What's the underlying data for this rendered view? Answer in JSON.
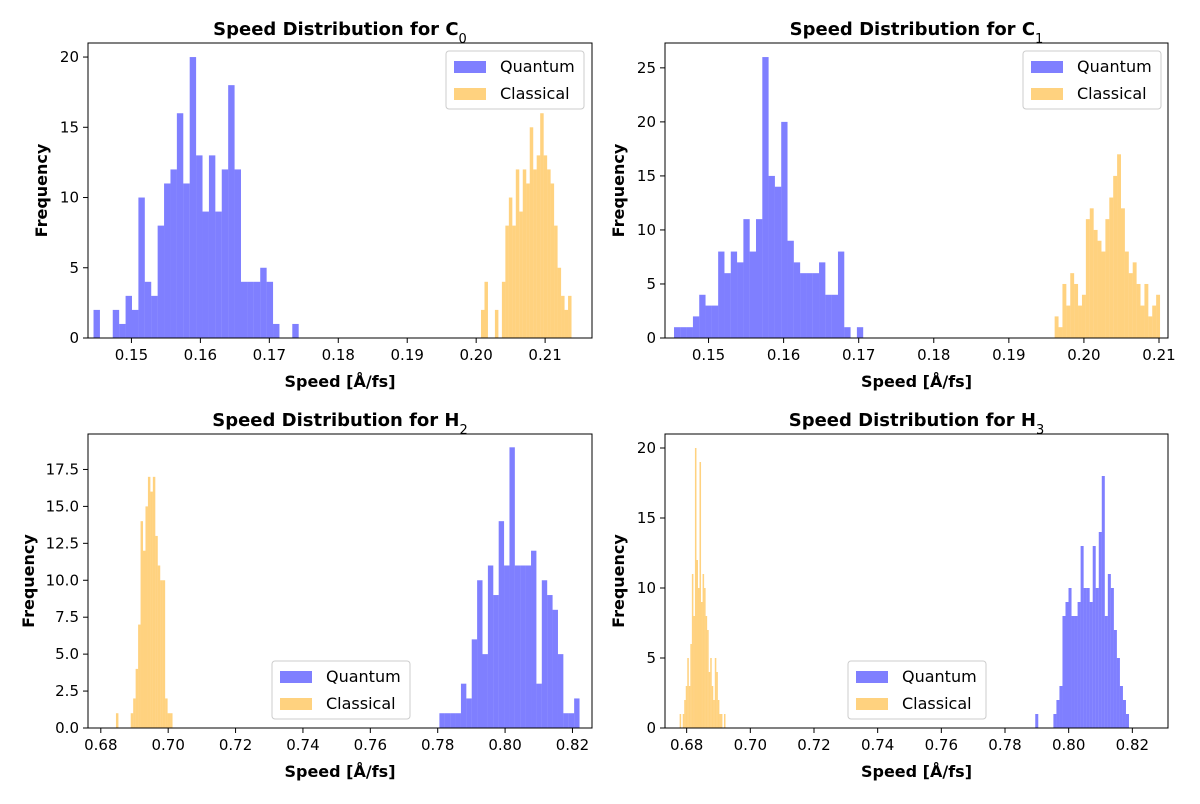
{
  "chart_data": [
    {
      "type": "bar",
      "title": "Speed Distribution for C",
      "title_subscript": "0",
      "xlabel": "Speed [Å/fs]",
      "ylabel": "Frequency",
      "xlim": [
        0.1437,
        0.2168
      ],
      "ylim": [
        0,
        21
      ],
      "xticks": [
        0.15,
        0.16,
        0.17,
        0.18,
        0.19,
        0.2,
        0.21
      ],
      "xtick_labels": [
        "0.15",
        "0.16",
        "0.17",
        "0.18",
        "0.19",
        "0.20",
        "0.21"
      ],
      "yticks": [
        0,
        5,
        10,
        15,
        20
      ],
      "ytick_labels": [
        "0",
        "5",
        "10",
        "15",
        "20"
      ],
      "legend": "top-right",
      "series": [
        {
          "name": "Quantum",
          "color": "#0000ff",
          "opacity": 0.5,
          "bin_start": 0.1445,
          "bin_width": 0.00093,
          "counts": [
            2,
            0,
            0,
            2,
            1,
            3,
            2,
            10,
            4,
            3,
            8,
            11,
            12,
            16,
            11,
            20,
            13,
            9,
            13,
            9,
            12,
            18,
            12,
            4,
            4,
            4,
            5,
            4,
            1,
            0,
            0,
            1
          ]
        },
        {
          "name": "Classical",
          "color": "#ffa500",
          "opacity": 0.5,
          "bin_start": 0.2007,
          "bin_width": 0.000505,
          "counts": [
            2,
            4,
            0,
            0,
            2,
            0,
            4,
            8,
            10,
            8,
            12,
            9,
            12,
            11,
            15,
            12,
            13,
            16,
            13,
            12,
            11,
            8,
            5,
            3,
            2,
            3
          ]
        }
      ]
    },
    {
      "type": "bar",
      "title": "Speed Distribution for C",
      "title_subscript": "1",
      "xlabel": "Speed [Å/fs]",
      "ylabel": "Frequency",
      "xlim": [
        0.1442,
        0.2112
      ],
      "ylim": [
        0,
        27.3
      ],
      "xticks": [
        0.15,
        0.16,
        0.17,
        0.18,
        0.19,
        0.2,
        0.21
      ],
      "xtick_labels": [
        "0.15",
        "0.16",
        "0.17",
        "0.18",
        "0.19",
        "0.20",
        "0.21"
      ],
      "yticks": [
        0,
        5,
        10,
        15,
        20,
        25
      ],
      "ytick_labels": [
        "0",
        "5",
        "10",
        "15",
        "20",
        "25"
      ],
      "legend": "top-right",
      "series": [
        {
          "name": "Quantum",
          "color": "#0000ff",
          "opacity": 0.5,
          "bin_start": 0.1454,
          "bin_width": 0.00084,
          "counts": [
            1,
            1,
            1,
            2,
            4,
            3,
            3,
            8,
            6,
            8,
            7,
            11,
            8,
            11,
            26,
            15,
            14,
            20,
            9,
            7,
            6,
            6,
            6,
            7,
            4,
            4,
            8,
            1,
            0,
            1
          ]
        },
        {
          "name": "Classical",
          "color": "#ffa500",
          "opacity": 0.5,
          "bin_start": 0.1961,
          "bin_width": 0.00052,
          "counts": [
            2,
            1,
            5,
            3,
            6,
            5,
            3,
            4,
            11,
            12,
            10,
            9,
            8,
            11,
            13,
            15,
            17,
            12,
            8,
            6,
            7,
            5,
            3,
            5,
            2,
            3,
            4
          ]
        }
      ]
    },
    {
      "type": "bar",
      "title": "Speed Distribution for H",
      "title_subscript": "2",
      "xlabel": "Speed [Å/fs]",
      "ylabel": "Frequency",
      "xlim": [
        0.6762,
        0.8258
      ],
      "ylim": [
        0,
        19.9
      ],
      "xticks": [
        0.68,
        0.7,
        0.72,
        0.74,
        0.76,
        0.78,
        0.8,
        0.82
      ],
      "xtick_labels": [
        "0.68",
        "0.70",
        "0.72",
        "0.74",
        "0.76",
        "0.78",
        "0.80",
        "0.82"
      ],
      "yticks": [
        0,
        2.5,
        5.0,
        7.5,
        10.0,
        12.5,
        15.0,
        17.5
      ],
      "ytick_labels": [
        "0.0",
        "2.5",
        "5.0",
        "7.5",
        "10.0",
        "12.5",
        "15.0",
        "17.5"
      ],
      "legend": "lower-center",
      "series": [
        {
          "name": "Quantum",
          "color": "#0000ff",
          "opacity": 0.5,
          "bin_start": 0.7805,
          "bin_width": 0.0016,
          "counts": [
            1,
            1,
            1,
            1,
            3,
            2,
            6,
            10,
            5,
            11,
            9,
            14,
            11,
            19,
            11,
            11,
            11,
            12,
            3,
            10,
            9,
            8,
            5,
            1,
            1,
            2
          ]
        },
        {
          "name": "Classical",
          "color": "#ffa500",
          "opacity": 0.5,
          "bin_start": 0.6845,
          "bin_width": 0.00073,
          "counts": [
            1,
            0,
            0,
            0,
            0,
            0,
            1,
            2,
            4,
            7,
            14,
            12,
            15,
            17,
            16,
            17,
            13,
            11,
            10,
            10,
            2,
            1,
            1
          ]
        }
      ]
    },
    {
      "type": "bar",
      "title": "Speed Distribution for H",
      "title_subscript": "3",
      "xlabel": "Speed [Å/fs]",
      "ylabel": "Frequency",
      "xlim": [
        0.6732,
        0.8312
      ],
      "ylim": [
        0,
        21
      ],
      "xticks": [
        0.68,
        0.7,
        0.72,
        0.74,
        0.76,
        0.78,
        0.8,
        0.82
      ],
      "xtick_labels": [
        "0.68",
        "0.70",
        "0.72",
        "0.74",
        "0.76",
        "0.78",
        "0.80",
        "0.82"
      ],
      "yticks": [
        0,
        5,
        10,
        15,
        20
      ],
      "ytick_labels": [
        "0",
        "5",
        "10",
        "15",
        "20"
      ],
      "legend": "lower-center",
      "series": [
        {
          "name": "Quantum",
          "color": "#0000ff",
          "opacity": 0.5,
          "bin_start": 0.7895,
          "bin_width": 0.00095,
          "counts": [
            1,
            0,
            0,
            0,
            0,
            0,
            1,
            2,
            3,
            8,
            9,
            10,
            8,
            8,
            9,
            13,
            10,
            10,
            9,
            13,
            10,
            14,
            18,
            8,
            11,
            10,
            7,
            5,
            3,
            2,
            1
          ]
        },
        {
          "name": "Classical",
          "color": "#ffa500",
          "opacity": 0.5,
          "bin_start": 0.6778,
          "bin_width": 0.00048,
          "counts": [
            1,
            0,
            1,
            2,
            3,
            5,
            3,
            6,
            11,
            8,
            20,
            12,
            10,
            19,
            9,
            11,
            10,
            8,
            7,
            4,
            5,
            3,
            2,
            5,
            4,
            2,
            1,
            1,
            0,
            1
          ]
        }
      ]
    }
  ]
}
